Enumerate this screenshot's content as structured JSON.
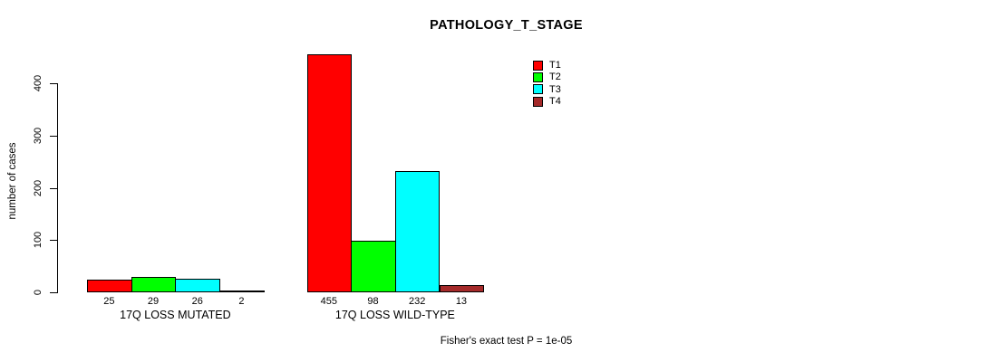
{
  "figure": {
    "background": "#FFFFFF",
    "text_color": "#000000"
  },
  "chart_data": {
    "type": "bar",
    "title": "PATHOLOGY_T_STAGE",
    "xlabel": "",
    "ylabel": "number of cases",
    "categories": [
      "17Q LOSS MUTATED",
      "17Q LOSS WILD-TYPE"
    ],
    "series": [
      {
        "name": "T1",
        "color": "#FF0000",
        "values": [
          25,
          455
        ]
      },
      {
        "name": "T2",
        "color": "#00FF00",
        "values": [
          29,
          98
        ]
      },
      {
        "name": "T3",
        "color": "#00FFFF",
        "values": [
          26,
          232
        ]
      },
      {
        "name": "T4",
        "color": "#A52A2A",
        "values": [
          2,
          13
        ]
      }
    ],
    "bar_value_labels": [
      [
        "25",
        "29",
        "26",
        "2"
      ],
      [
        "455",
        "98",
        "232",
        "13"
      ]
    ],
    "yticks": [
      0,
      100,
      200,
      300,
      400
    ],
    "ylim": [
      0,
      460
    ],
    "grid": false,
    "legend_position": "top-right-inside",
    "annotation": "Fisher's exact test P = 1e-05"
  }
}
